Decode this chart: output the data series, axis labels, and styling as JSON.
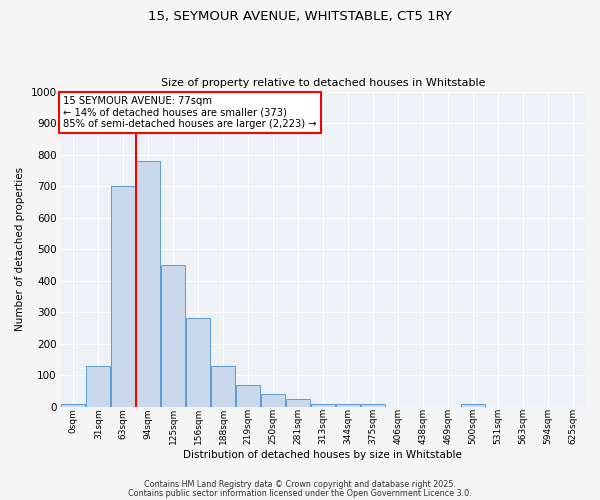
{
  "title_line1": "15, SEYMOUR AVENUE, WHITSTABLE, CT5 1RY",
  "title_line2": "Size of property relative to detached houses in Whitstable",
  "xlabel": "Distribution of detached houses by size in Whitstable",
  "ylabel": "Number of detached properties",
  "categories": [
    "0sqm",
    "31sqm",
    "63sqm",
    "94sqm",
    "125sqm",
    "156sqm",
    "188sqm",
    "219sqm",
    "250sqm",
    "281sqm",
    "313sqm",
    "344sqm",
    "375sqm",
    "406sqm",
    "438sqm",
    "469sqm",
    "500sqm",
    "531sqm",
    "563sqm",
    "594sqm",
    "625sqm"
  ],
  "values": [
    8,
    130,
    700,
    780,
    450,
    280,
    130,
    70,
    40,
    25,
    10,
    10,
    10,
    0,
    0,
    0,
    8,
    0,
    0,
    0,
    0
  ],
  "bar_color": "#c9d9eb",
  "bar_edge_color": "#5b9bd5",
  "red_line_index": 2,
  "annotation_line1": "15 SEYMOUR AVENUE: 77sqm",
  "annotation_line2": "← 14% of detached houses are smaller (373)",
  "annotation_line3": "85% of semi-detached houses are larger (2,223) →",
  "ylim": [
    0,
    1000
  ],
  "yticks": [
    0,
    100,
    200,
    300,
    400,
    500,
    600,
    700,
    800,
    900,
    1000
  ],
  "background_color": "#eef2f7",
  "grid_color": "#ffffff",
  "footer_line1": "Contains HM Land Registry data © Crown copyright and database right 2025.",
  "footer_line2": "Contains public sector information licensed under the Open Government Licence 3.0."
}
